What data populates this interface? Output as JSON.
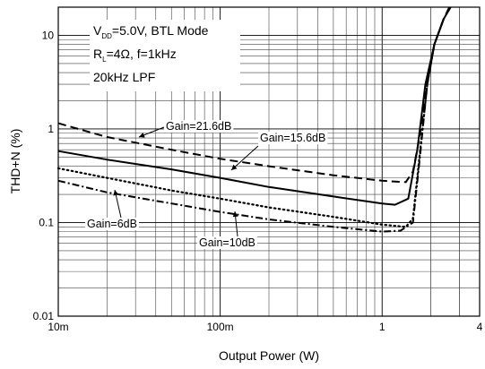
{
  "chart_data": {
    "type": "line",
    "title": "",
    "xlabel": "Output Power (W)",
    "ylabel": "THD+N (%)",
    "x_scale": "log",
    "y_scale": "log",
    "xlim": [
      0.01,
      4
    ],
    "ylim": [
      0.01,
      20
    ],
    "x_ticks": [
      {
        "value": 0.01,
        "label": "10m"
      },
      {
        "value": 0.1,
        "label": "100m"
      },
      {
        "value": 1,
        "label": "1"
      },
      {
        "value": 4,
        "label": "4"
      }
    ],
    "y_ticks": [
      {
        "value": 10,
        "label": "10"
      },
      {
        "value": 1,
        "label": "1"
      },
      {
        "value": 0.1,
        "label": "0.1"
      },
      {
        "value": 0.01,
        "label": "0.01"
      }
    ],
    "grid": true,
    "conditions": {
      "vdd_main": "V",
      "vdd_sub": "DD",
      "vdd_rest": "=5.0V, BTL Mode",
      "rl_main": "R",
      "rl_sub": "L",
      "rl_rest": "=4Ω, f=1kHz",
      "filter": "20kHz LPF"
    },
    "series": [
      {
        "name": "Gain=21.6dB",
        "style": "dashed",
        "points": [
          [
            0.01,
            1.15
          ],
          [
            0.02,
            0.82
          ],
          [
            0.05,
            0.6
          ],
          [
            0.1,
            0.48
          ],
          [
            0.2,
            0.4
          ],
          [
            0.5,
            0.32
          ],
          [
            1,
            0.28
          ],
          [
            1.4,
            0.27
          ],
          [
            1.55,
            0.35
          ],
          [
            1.7,
            0.8
          ],
          [
            1.9,
            3
          ],
          [
            2.1,
            8
          ],
          [
            2.4,
            15
          ],
          [
            2.6,
            20
          ]
        ]
      },
      {
        "name": "Gain=15.6dB",
        "style": "solid",
        "points": [
          [
            0.01,
            0.58
          ],
          [
            0.02,
            0.47
          ],
          [
            0.05,
            0.37
          ],
          [
            0.1,
            0.3
          ],
          [
            0.2,
            0.24
          ],
          [
            0.5,
            0.19
          ],
          [
            1,
            0.16
          ],
          [
            1.2,
            0.155
          ],
          [
            1.45,
            0.18
          ],
          [
            1.65,
            0.6
          ],
          [
            1.85,
            3
          ],
          [
            2.1,
            8
          ],
          [
            2.4,
            15
          ],
          [
            2.65,
            20
          ]
        ]
      },
      {
        "name": "Gain=10dB",
        "style": "dotted",
        "points": [
          [
            0.01,
            0.38
          ],
          [
            0.02,
            0.3
          ],
          [
            0.05,
            0.22
          ],
          [
            0.1,
            0.18
          ],
          [
            0.2,
            0.145
          ],
          [
            0.5,
            0.115
          ],
          [
            1,
            0.095
          ],
          [
            1.4,
            0.09
          ],
          [
            1.55,
            0.11
          ],
          [
            1.7,
            0.5
          ],
          [
            1.9,
            3
          ],
          [
            2.1,
            8
          ],
          [
            2.4,
            15
          ]
        ]
      },
      {
        "name": "Gain=6dB",
        "style": "dash-dot",
        "points": [
          [
            0.01,
            0.28
          ],
          [
            0.02,
            0.21
          ],
          [
            0.05,
            0.16
          ],
          [
            0.1,
            0.13
          ],
          [
            0.2,
            0.108
          ],
          [
            0.5,
            0.09
          ],
          [
            1,
            0.08
          ],
          [
            1.3,
            0.082
          ],
          [
            1.55,
            0.1
          ],
          [
            1.7,
            0.45
          ],
          [
            1.9,
            3
          ],
          [
            2.1,
            8
          ],
          [
            2.4,
            15
          ]
        ]
      }
    ],
    "annotations": [
      {
        "text": "Gain=21.6dB",
        "series": "Gain=21.6dB"
      },
      {
        "text": "Gain=15.6dB",
        "series": "Gain=15.6dB"
      },
      {
        "text": "Gain=6dB",
        "series": "Gain=6dB"
      },
      {
        "text": "Gain=10dB",
        "series": "Gain=10dB"
      }
    ]
  }
}
